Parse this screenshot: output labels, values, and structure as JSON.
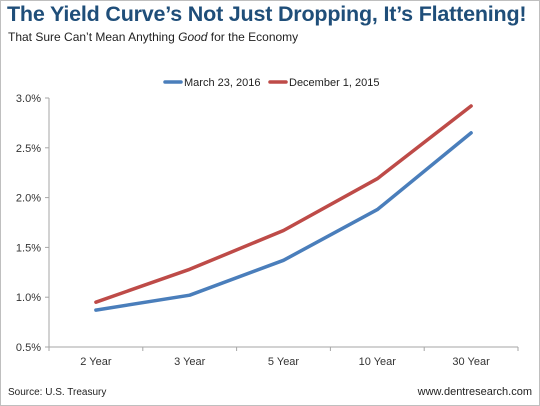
{
  "header": {
    "title": "The Yield Curve’s Not Just Dropping, It’s Flattening!",
    "subtitle_pre": "That Sure Can’t Mean Anything ",
    "subtitle_em": "Good",
    "subtitle_post": " for the Economy"
  },
  "footer": {
    "source": "Source: U.S. Treasury",
    "site": "www.dentresearch.com"
  },
  "chart_data": {
    "type": "line",
    "title": "The Yield Curve’s Not Just Dropping, It’s Flattening!",
    "subtitle": "That Sure Can’t Mean Anything Good for the Economy",
    "categories": [
      "2 Year",
      "3 Year",
      "5 Year",
      "10 Year",
      "30 Year"
    ],
    "series": [
      {
        "name": "March 23, 2016",
        "color": "#4a7ebb",
        "values": [
          0.87,
          1.02,
          1.37,
          1.88,
          2.65
        ]
      },
      {
        "name": "December 1, 2015",
        "color": "#be4b48",
        "values": [
          0.95,
          1.28,
          1.67,
          2.19,
          2.92
        ]
      }
    ],
    "yticks": [
      "0.5%",
      "1.0%",
      "1.5%",
      "2.0%",
      "2.5%",
      "3.0%"
    ],
    "ylim": [
      0.5,
      3.0
    ],
    "y_tick_step": 0.5,
    "xlabel": "",
    "ylabel": "",
    "legend": "top-center",
    "grid": false
  }
}
